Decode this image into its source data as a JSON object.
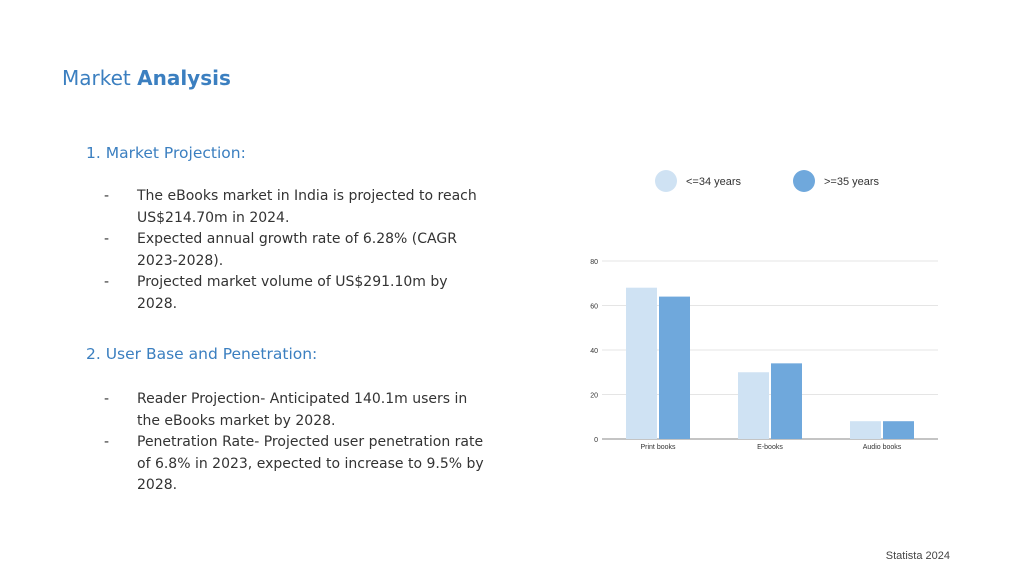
{
  "title": {
    "light": "Market",
    "bold": "Analysis"
  },
  "sections": [
    {
      "heading": "1. Market Projection:",
      "bullets": [
        "The eBooks market in India is projected to reach US$214.70m in 2024.",
        "Expected annual growth rate of 6.28% (CAGR 2023-2028).",
        "Projected market volume of US$291.10m by 2028."
      ]
    },
    {
      "heading": "2. User Base and Penetration:",
      "bullets": [
        "Reader Projection- Anticipated 140.1m users in the eBooks market by 2028.",
        "Penetration Rate- Projected user penetration rate of 6.8% in 2023, expected to increase to 9.5% by 2028."
      ]
    }
  ],
  "bullet_marker": "-",
  "footer": "Statista 2024",
  "chart_data": {
    "type": "bar",
    "categories": [
      "Print books",
      "E-books",
      "Audio books"
    ],
    "series": [
      {
        "name": "<=34 years",
        "values": [
          68,
          30,
          8
        ],
        "color": "#cfe2f3"
      },
      {
        "name": ">=35 years",
        "values": [
          64,
          34,
          8
        ],
        "color": "#6fa8dc"
      }
    ],
    "ylim": [
      0,
      80
    ],
    "yticks": [
      0,
      20,
      40,
      60,
      80
    ],
    "grid": true,
    "legend_position": "top"
  }
}
